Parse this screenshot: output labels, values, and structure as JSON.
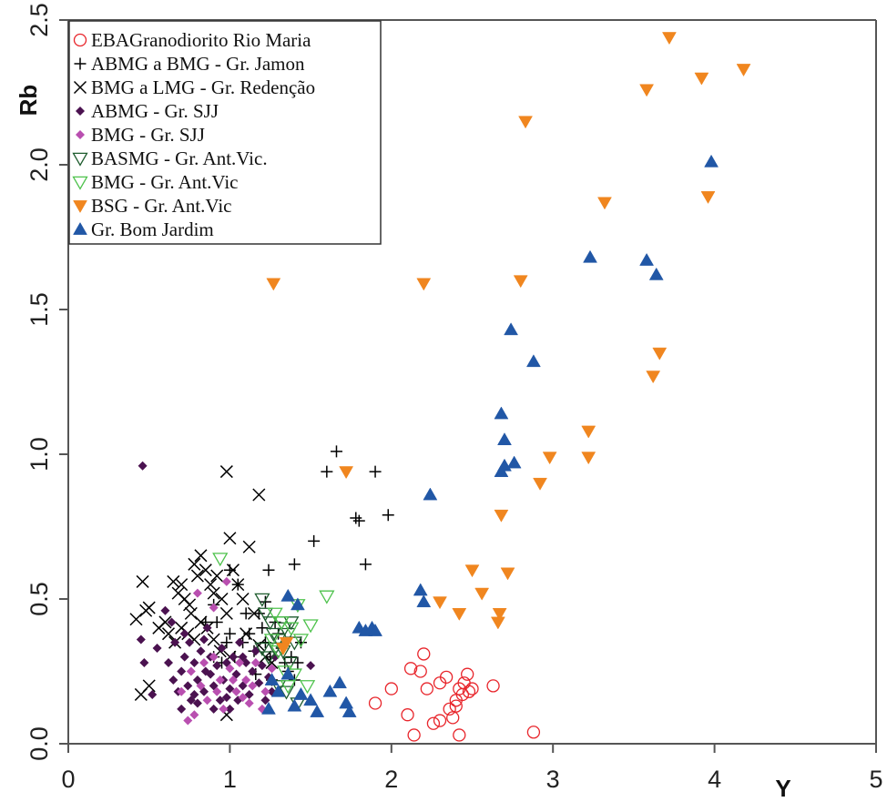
{
  "chart_data": {
    "type": "scatter",
    "xlabel": "Y",
    "ylabel": "Rb",
    "xlim": [
      0,
      5
    ],
    "ylim": [
      0,
      2.5
    ],
    "x_ticks": [
      "0",
      "1",
      "2",
      "3",
      "4",
      "5"
    ],
    "y_ticks": [
      "0.0",
      "0.5",
      "1.0",
      "1.5",
      "2.0",
      "2.5"
    ],
    "grid": false,
    "legend_position": "top-left",
    "series": [
      {
        "name": "EBAGranodiorito Rio Maria",
        "marker": "open-circle",
        "color": "#e8252b",
        "points": [
          [
            1.9,
            0.14
          ],
          [
            2.0,
            0.19
          ],
          [
            2.1,
            0.1
          ],
          [
            2.12,
            0.26
          ],
          [
            2.14,
            0.03
          ],
          [
            2.18,
            0.25
          ],
          [
            2.2,
            0.31
          ],
          [
            2.22,
            0.19
          ],
          [
            2.26,
            0.07
          ],
          [
            2.3,
            0.08
          ],
          [
            2.3,
            0.21
          ],
          [
            2.34,
            0.23
          ],
          [
            2.38,
            0.09
          ],
          [
            2.4,
            0.15
          ],
          [
            2.4,
            0.13
          ],
          [
            2.42,
            0.03
          ],
          [
            2.42,
            0.19
          ],
          [
            2.45,
            0.21
          ],
          [
            2.47,
            0.24
          ],
          [
            2.5,
            0.19
          ],
          [
            2.48,
            0.18
          ],
          [
            2.63,
            0.2
          ],
          [
            2.88,
            0.04
          ],
          [
            2.36,
            0.12
          ],
          [
            2.44,
            0.17
          ]
        ]
      },
      {
        "name": "ABMG a BMG - Gr. Jamon",
        "marker": "plus",
        "color": "#000000",
        "points": [
          [
            1.66,
            1.01
          ],
          [
            1.6,
            0.94
          ],
          [
            1.9,
            0.94
          ],
          [
            1.78,
            0.78
          ],
          [
            1.8,
            0.77
          ],
          [
            1.98,
            0.79
          ],
          [
            1.52,
            0.7
          ],
          [
            1.84,
            0.62
          ],
          [
            1.4,
            0.62
          ],
          [
            1.24,
            0.6
          ],
          [
            0.85,
            0.42
          ],
          [
            0.9,
            0.48
          ],
          [
            0.92,
            0.42
          ],
          [
            0.98,
            0.35
          ],
          [
            1.0,
            0.38
          ],
          [
            1.03,
            0.3
          ],
          [
            1.08,
            0.35
          ],
          [
            1.12,
            0.38
          ],
          [
            1.15,
            0.32
          ],
          [
            1.18,
            0.45
          ],
          [
            1.2,
            0.4
          ],
          [
            1.22,
            0.35
          ],
          [
            1.25,
            0.3
          ],
          [
            1.28,
            0.42
          ],
          [
            1.3,
            0.38
          ],
          [
            1.32,
            0.33
          ],
          [
            1.34,
            0.28
          ],
          [
            1.36,
            0.25
          ],
          [
            1.38,
            0.3
          ],
          [
            1.4,
            0.22
          ],
          [
            1.42,
            0.28
          ],
          [
            1.0,
            0.6
          ],
          [
            1.05,
            0.55
          ],
          [
            0.9,
            0.3
          ],
          [
            1.1,
            0.45
          ],
          [
            1.22,
            0.49
          ],
          [
            1.16,
            0.24
          ],
          [
            1.26,
            0.22
          ],
          [
            1.44,
            0.35
          ],
          [
            0.95,
            0.28
          ]
        ]
      },
      {
        "name": "BMG a LMG - Gr. Redenção",
        "marker": "x",
        "color": "#000000",
        "points": [
          [
            0.98,
            0.94
          ],
          [
            1.18,
            0.86
          ],
          [
            0.46,
            0.56
          ],
          [
            0.5,
            0.47
          ],
          [
            0.48,
            0.46
          ],
          [
            0.42,
            0.43
          ],
          [
            0.45,
            0.17
          ],
          [
            0.5,
            0.2
          ],
          [
            0.65,
            0.56
          ],
          [
            0.68,
            0.52
          ],
          [
            0.7,
            0.55
          ],
          [
            0.72,
            0.5
          ],
          [
            0.75,
            0.48
          ],
          [
            0.76,
            0.45
          ],
          [
            0.78,
            0.62
          ],
          [
            0.8,
            0.58
          ],
          [
            0.82,
            0.65
          ],
          [
            0.85,
            0.6
          ],
          [
            0.88,
            0.55
          ],
          [
            0.9,
            0.52
          ],
          [
            0.92,
            0.58
          ],
          [
            0.95,
            0.5
          ],
          [
            0.98,
            0.45
          ],
          [
            1.0,
            0.71
          ],
          [
            1.02,
            0.6
          ],
          [
            1.05,
            0.55
          ],
          [
            1.08,
            0.5
          ],
          [
            1.12,
            0.68
          ],
          [
            1.15,
            0.45
          ],
          [
            0.6,
            0.42
          ],
          [
            0.62,
            0.38
          ],
          [
            0.66,
            0.35
          ],
          [
            0.7,
            0.4
          ],
          [
            0.74,
            0.38
          ],
          [
            0.78,
            0.36
          ],
          [
            0.82,
            0.42
          ],
          [
            0.86,
            0.4
          ],
          [
            0.9,
            0.36
          ],
          [
            0.94,
            0.32
          ],
          [
            1.0,
            0.3
          ],
          [
            1.1,
            0.38
          ],
          [
            1.18,
            0.34
          ],
          [
            1.22,
            0.3
          ],
          [
            1.26,
            0.28
          ],
          [
            0.98,
            0.1
          ],
          [
            0.56,
            0.4
          ]
        ]
      },
      {
        "name": "ABMG - Gr. SJJ",
        "marker": "filled-diamond",
        "color": "#4b1250",
        "points": [
          [
            0.46,
            0.96
          ],
          [
            0.45,
            0.36
          ],
          [
            0.47,
            0.28
          ],
          [
            0.52,
            0.17
          ],
          [
            0.55,
            0.33
          ],
          [
            0.6,
            0.46
          ],
          [
            0.62,
            0.28
          ],
          [
            0.65,
            0.22
          ],
          [
            0.66,
            0.35
          ],
          [
            0.68,
            0.18
          ],
          [
            0.7,
            0.25
          ],
          [
            0.72,
            0.3
          ],
          [
            0.74,
            0.2
          ],
          [
            0.75,
            0.35
          ],
          [
            0.76,
            0.15
          ],
          [
            0.78,
            0.28
          ],
          [
            0.8,
            0.22
          ],
          [
            0.82,
            0.32
          ],
          [
            0.84,
            0.18
          ],
          [
            0.85,
            0.25
          ],
          [
            0.86,
            0.4
          ],
          [
            0.88,
            0.3
          ],
          [
            0.9,
            0.2
          ],
          [
            0.92,
            0.27
          ],
          [
            0.94,
            0.15
          ],
          [
            0.95,
            0.33
          ],
          [
            0.96,
            0.22
          ],
          [
            0.98,
            0.28
          ],
          [
            1.0,
            0.19
          ],
          [
            1.02,
            0.3
          ],
          [
            1.04,
            0.24
          ],
          [
            1.05,
            0.15
          ],
          [
            1.06,
            0.35
          ],
          [
            1.08,
            0.2
          ],
          [
            1.1,
            0.28
          ],
          [
            1.12,
            0.17
          ],
          [
            1.14,
            0.25
          ],
          [
            1.16,
            0.32
          ],
          [
            1.18,
            0.21
          ],
          [
            1.2,
            0.27
          ],
          [
            1.22,
            0.15
          ],
          [
            1.24,
            0.23
          ],
          [
            1.26,
            0.18
          ],
          [
            1.28,
            0.3
          ],
          [
            0.7,
            0.12
          ],
          [
            0.8,
            0.14
          ],
          [
            0.9,
            0.12
          ],
          [
            1.0,
            0.12
          ],
          [
            0.64,
            0.42
          ],
          [
            0.72,
            0.38
          ],
          [
            0.84,
            0.36
          ],
          [
            1.5,
            0.27
          ],
          [
            0.78,
            0.17
          ],
          [
            0.88,
            0.24
          ],
          [
            0.98,
            0.16
          ],
          [
            1.08,
            0.3
          ]
        ]
      },
      {
        "name": "BMG - Gr. SJJ",
        "marker": "filled-diamond",
        "color": "#b94fb0",
        "points": [
          [
            0.98,
            0.56
          ],
          [
            0.8,
            0.52
          ],
          [
            0.9,
            0.47
          ],
          [
            0.74,
            0.08
          ],
          [
            0.7,
            0.18
          ],
          [
            0.76,
            0.25
          ],
          [
            0.78,
            0.1
          ],
          [
            0.82,
            0.2
          ],
          [
            0.86,
            0.15
          ],
          [
            0.9,
            0.3
          ],
          [
            0.94,
            0.22
          ],
          [
            0.96,
            0.12
          ],
          [
            1.0,
            0.26
          ],
          [
            1.04,
            0.18
          ],
          [
            1.06,
            0.28
          ],
          [
            1.1,
            0.22
          ],
          [
            1.12,
            0.14
          ],
          [
            1.14,
            0.2
          ],
          [
            1.2,
            0.12
          ],
          [
            1.22,
            0.18
          ],
          [
            1.26,
            0.26
          ],
          [
            0.84,
            0.28
          ],
          [
            0.92,
            0.18
          ],
          [
            1.02,
            0.22
          ],
          [
            1.08,
            0.16
          ],
          [
            1.16,
            0.28
          ]
        ]
      },
      {
        "name": "BASMG - Gr. Ant.Vic.",
        "marker": "open-triangle-down",
        "color": "#1e5c2e",
        "points": [
          [
            1.2,
            0.5
          ],
          [
            1.22,
            0.45
          ],
          [
            1.25,
            0.42
          ],
          [
            1.27,
            0.38
          ],
          [
            1.3,
            0.36
          ],
          [
            1.32,
            0.42
          ],
          [
            1.34,
            0.4
          ],
          [
            1.36,
            0.38
          ],
          [
            1.38,
            0.42
          ],
          [
            1.4,
            0.35
          ],
          [
            1.24,
            0.3
          ],
          [
            1.28,
            0.33
          ],
          [
            1.33,
            0.32
          ],
          [
            1.37,
            0.28
          ],
          [
            1.35,
            0.18
          ],
          [
            1.42,
            0.14
          ],
          [
            1.3,
            0.2
          ],
          [
            1.2,
            0.33
          ]
        ]
      },
      {
        "name": "BMG - Gr. Ant.Vic",
        "marker": "open-triangle-down",
        "color": "#4ec24c",
        "points": [
          [
            0.94,
            0.64
          ],
          [
            1.6,
            0.51
          ],
          [
            1.5,
            0.41
          ],
          [
            1.42,
            0.48
          ],
          [
            1.38,
            0.4
          ],
          [
            1.44,
            0.36
          ],
          [
            1.26,
            0.36
          ],
          [
            1.3,
            0.32
          ],
          [
            1.34,
            0.25
          ],
          [
            1.36,
            0.2
          ],
          [
            1.48,
            0.2
          ],
          [
            1.4,
            0.24
          ],
          [
            1.32,
            0.42
          ],
          [
            1.28,
            0.45
          ]
        ]
      },
      {
        "name": "BSG - Gr. Ant.Vic",
        "marker": "filled-triangle-down",
        "color": "#f0861f",
        "points": [
          [
            3.72,
            2.44
          ],
          [
            4.18,
            2.33
          ],
          [
            3.92,
            2.3
          ],
          [
            3.58,
            2.26
          ],
          [
            2.83,
            2.15
          ],
          [
            3.96,
            1.89
          ],
          [
            3.32,
            1.87
          ],
          [
            1.27,
            1.59
          ],
          [
            2.2,
            1.59
          ],
          [
            2.8,
            1.6
          ],
          [
            3.66,
            1.35
          ],
          [
            3.62,
            1.27
          ],
          [
            3.22,
            1.08
          ],
          [
            2.98,
            0.99
          ],
          [
            3.22,
            0.99
          ],
          [
            2.92,
            0.9
          ],
          [
            1.72,
            0.94
          ],
          [
            2.68,
            0.79
          ],
          [
            2.72,
            0.59
          ],
          [
            2.5,
            0.6
          ],
          [
            2.56,
            0.52
          ],
          [
            2.3,
            0.49
          ],
          [
            2.42,
            0.45
          ],
          [
            2.67,
            0.45
          ],
          [
            2.66,
            0.42
          ],
          [
            1.35,
            0.35
          ],
          [
            1.33,
            0.33
          ]
        ]
      },
      {
        "name": "Gr. Bom Jardim",
        "marker": "filled-triangle-up",
        "color": "#2157a6",
        "points": [
          [
            3.98,
            2.01
          ],
          [
            3.23,
            1.68
          ],
          [
            3.58,
            1.67
          ],
          [
            3.64,
            1.62
          ],
          [
            2.74,
            1.43
          ],
          [
            2.88,
            1.32
          ],
          [
            2.68,
            1.14
          ],
          [
            2.7,
            1.05
          ],
          [
            2.7,
            0.96
          ],
          [
            2.76,
            0.97
          ],
          [
            2.68,
            0.94
          ],
          [
            2.24,
            0.86
          ],
          [
            2.18,
            0.53
          ],
          [
            2.2,
            0.49
          ],
          [
            1.36,
            0.51
          ],
          [
            1.42,
            0.48
          ],
          [
            1.8,
            0.4
          ],
          [
            1.84,
            0.39
          ],
          [
            1.88,
            0.4
          ],
          [
            1.9,
            0.39
          ],
          [
            1.68,
            0.21
          ],
          [
            1.62,
            0.18
          ],
          [
            1.72,
            0.14
          ],
          [
            1.74,
            0.11
          ],
          [
            1.54,
            0.11
          ],
          [
            1.5,
            0.15
          ],
          [
            1.44,
            0.17
          ],
          [
            1.36,
            0.24
          ],
          [
            1.3,
            0.18
          ],
          [
            1.26,
            0.22
          ],
          [
            1.24,
            0.12
          ],
          [
            1.4,
            0.13
          ]
        ]
      }
    ]
  }
}
